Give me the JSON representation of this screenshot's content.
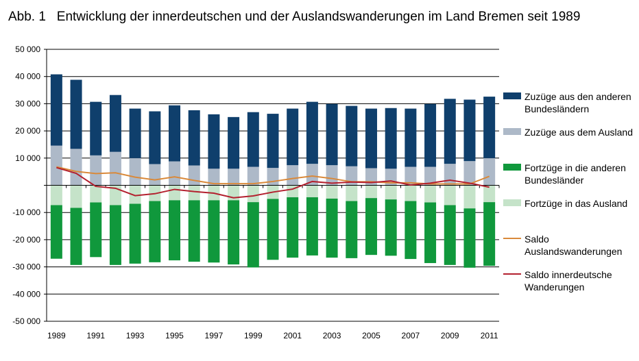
{
  "title": "Abb. 1   Entwicklung der innerdeutschen und der Auslandswanderungen im Land Bremen seit 1989",
  "chart_data": {
    "type": "bar",
    "stacked": true,
    "title": "Entwicklung der innerdeutschen und der Auslandswanderungen im Land Bremen seit 1989",
    "figure_label": "Abb. 1",
    "xlabel": "",
    "ylabel": "",
    "ylim": [
      -50000,
      50000
    ],
    "yticks": [
      50000,
      40000,
      30000,
      20000,
      10000,
      0,
      -10000,
      -20000,
      -30000,
      -40000,
      -50000
    ],
    "ytick_labels": [
      "50 000",
      "40 000",
      "30 000",
      "20 000",
      "10 000",
      "",
      "-10 000",
      "-20 000",
      "-30 000",
      "-40 000",
      "-50 000"
    ],
    "grid": true,
    "legend_position": "right",
    "categories": [
      "1989",
      "1990",
      "1991",
      "1992",
      "1993",
      "1994",
      "1995",
      "1996",
      "1997",
      "1998",
      "1999",
      "2000",
      "2001",
      "2002",
      "2003",
      "2004",
      "2005",
      "2006",
      "2007",
      "2008",
      "2009",
      "2010",
      "2011"
    ],
    "xtick_labels": [
      "1989",
      "1991",
      "1993",
      "1995",
      "1997",
      "1999",
      "2001",
      "2003",
      "2005",
      "2007",
      "2009",
      "2011"
    ],
    "series": [
      {
        "name": "Zuzüge aus den anderen Bundesländern",
        "kind": "bar",
        "stack": "positive",
        "color": "#0f3f6c",
        "values": [
          26200,
          25400,
          19700,
          20900,
          18200,
          19400,
          20600,
          20300,
          20000,
          19000,
          20100,
          19900,
          20800,
          22800,
          22500,
          22200,
          21900,
          22300,
          21400,
          23100,
          23900,
          22600,
          22600
        ]
      },
      {
        "name": "Zuzüge aus dem Ausland",
        "kind": "bar",
        "stack": "positive",
        "color": "#adb9c8",
        "values": [
          14600,
          13400,
          11000,
          12300,
          10000,
          7800,
          8800,
          7300,
          6100,
          6100,
          6800,
          6400,
          7400,
          7900,
          7400,
          7000,
          6300,
          6100,
          6800,
          6800,
          7900,
          8900,
          10000
        ]
      },
      {
        "name": "Fortzüge in die anderen Bundesländer",
        "kind": "bar",
        "stack": "negative",
        "color": "#10983c",
        "values": [
          -19700,
          -21000,
          -20100,
          -22000,
          -22000,
          -22500,
          -22100,
          -22600,
          -22900,
          -23600,
          -24000,
          -22400,
          -22200,
          -21400,
          -21700,
          -21000,
          -20900,
          -20700,
          -21300,
          -22300,
          -22000,
          -21800,
          -23400
        ]
      },
      {
        "name": "Fortzüge in das Ausland",
        "kind": "bar",
        "stack": "negative",
        "color": "#c5e3c9",
        "values": [
          -7300,
          -8300,
          -6300,
          -7300,
          -6800,
          -5800,
          -5500,
          -5500,
          -5500,
          -5500,
          -6200,
          -5000,
          -4400,
          -4400,
          -4900,
          -5800,
          -4700,
          -5200,
          -5800,
          -6300,
          -7300,
          -8500,
          -6200
        ]
      },
      {
        "name": "Saldo Auslandswanderungen",
        "kind": "line",
        "color": "#d9893a",
        "values": [
          6800,
          5100,
          4300,
          4600,
          3000,
          2000,
          3100,
          1800,
          600,
          600,
          600,
          1400,
          2500,
          3400,
          2500,
          1300,
          1300,
          900,
          900,
          500,
          500,
          500,
          3300
        ]
      },
      {
        "name": "Saldo innerdeutsche Wanderungen",
        "kind": "line",
        "color": "#b3202e",
        "values": [
          6500,
          4400,
          -400,
          -1100,
          -3800,
          -3100,
          -1500,
          -2300,
          -2900,
          -4600,
          -3900,
          -2500,
          -1400,
          1400,
          800,
          1200,
          1000,
          1600,
          100,
          800,
          1900,
          800,
          -700
        ]
      }
    ]
  },
  "legend": {
    "items": [
      {
        "label": "Zuzüge aus den anderen Bundesländern",
        "color": "#0f3f6c",
        "type": "box"
      },
      {
        "label": "Zuzüge aus dem Ausland",
        "color": "#adb9c8",
        "type": "box"
      },
      {
        "label": "Fortzüge in die anderen Bundesländer",
        "color": "#10983c",
        "type": "box"
      },
      {
        "label": "Fortzüge in das Ausland",
        "color": "#c5e3c9",
        "type": "box"
      },
      {
        "label": "Saldo Auslandswanderungen",
        "color": "#d9893a",
        "type": "line"
      },
      {
        "label": "Saldo innerdeutsche Wanderungen",
        "color": "#b3202e",
        "type": "line"
      }
    ]
  }
}
